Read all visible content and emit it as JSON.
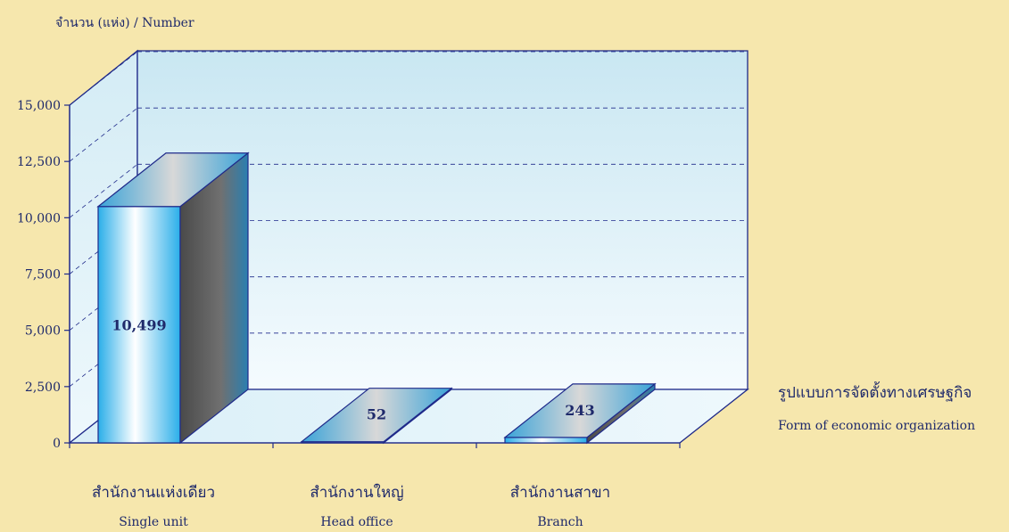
{
  "chart_data": {
    "type": "bar",
    "ylabel": "จำนวน (แห่ง) / Number",
    "ylim": [
      0,
      15000
    ],
    "yticks": [
      0,
      2500,
      5000,
      7500,
      10000,
      12500,
      15000
    ],
    "ytick_labels": [
      "0",
      "2,500",
      "5,000",
      "7,500",
      "10,000",
      "12,500",
      "15,000"
    ],
    "categories": [
      {
        "th": "สำนักงานแห่งเดียว",
        "en": "Single unit"
      },
      {
        "th": "สำนักงานใหญ่",
        "en": "Head office"
      },
      {
        "th": "สำนักงานสาขา",
        "en": "Branch"
      }
    ],
    "values": [
      10499,
      52,
      243
    ],
    "value_labels": [
      "10,499",
      "52",
      "243"
    ],
    "xlabel": {
      "th": "รูปแบบการจัดตั้งทางเศรษฐกิจ",
      "en": "Form of  economic organization"
    },
    "grid": true
  },
  "colors": {
    "background": "#f6e7ad",
    "frame": "#1f2a8a",
    "panel_light": "#f4fbfe",
    "panel_dark": "#cde9f3",
    "bar_front": "#3cb6ea",
    "bar_side": "#5a5a5a",
    "bar_top": "#c8c8c8",
    "text": "#1f2a6b"
  }
}
